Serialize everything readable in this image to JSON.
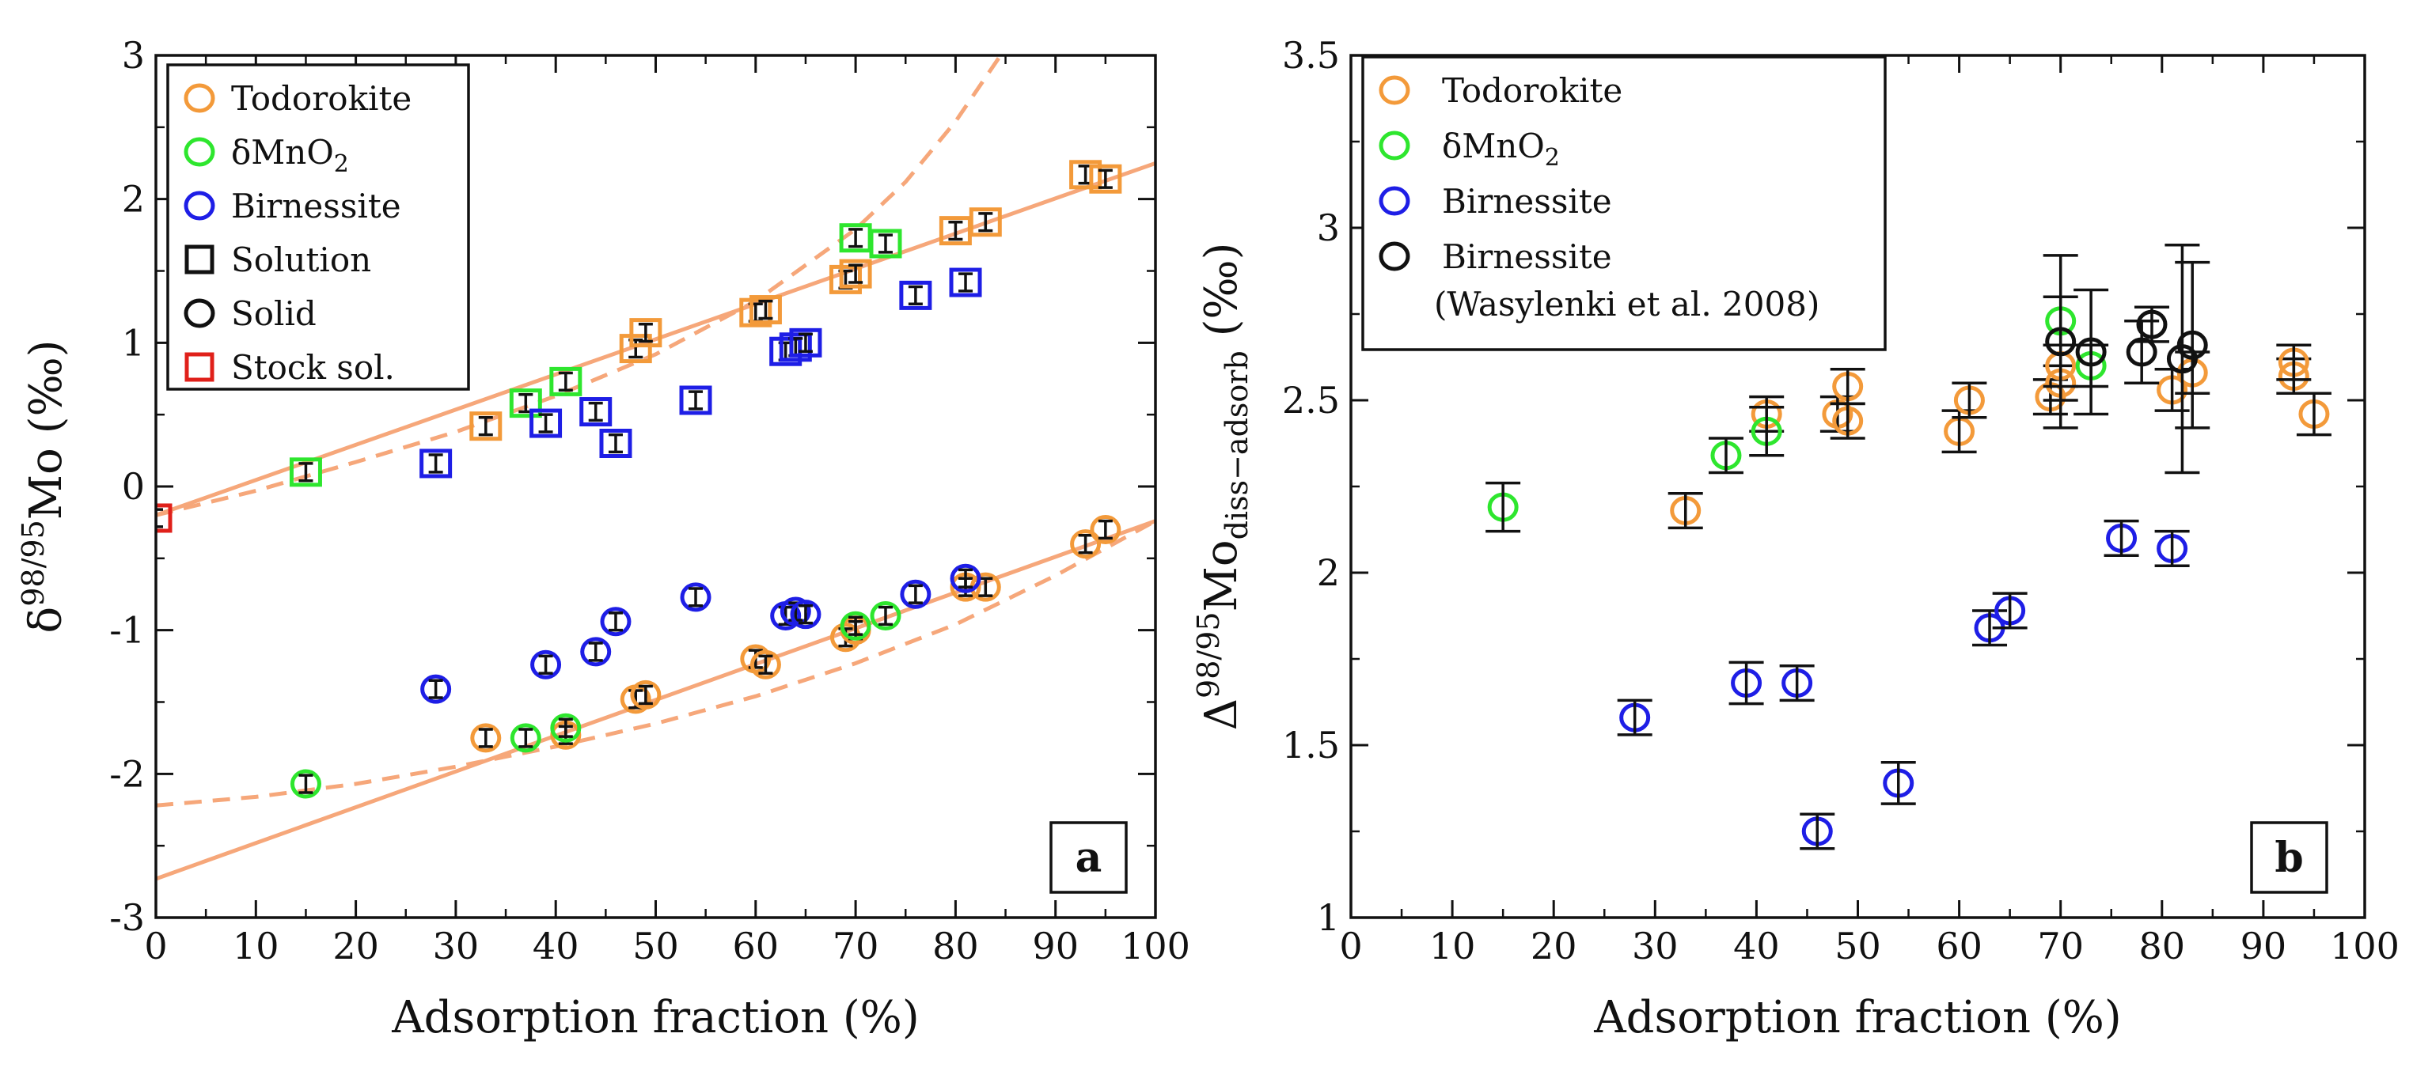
{
  "figure": {
    "panels": [
      "a",
      "b"
    ]
  },
  "chart_data": [
    {
      "type": "scatter",
      "panel": "a",
      "xlabel": "Adsorption fraction (%)",
      "ylabel": "δ98/95Mo (‰)",
      "ylabel_parts": {
        "prefix": "δ",
        "sup": "98/95",
        "main": "Mo (‰)"
      },
      "xlim": [
        0,
        100
      ],
      "ylim": [
        -3,
        3
      ],
      "xticks": [
        0,
        10,
        20,
        30,
        40,
        50,
        60,
        70,
        80,
        90,
        100
      ],
      "yticks": [
        -3,
        -2,
        -1,
        0,
        1,
        2,
        3
      ],
      "panel_label": "a",
      "legend": [
        {
          "label": "Todorokite",
          "marker": "circle",
          "color": "#F39A3A"
        },
        {
          "label": "δMnO2",
          "label_main": "δMnO",
          "label_sub": "2",
          "marker": "circle",
          "color": "#2EE62E"
        },
        {
          "label": "Birnessite",
          "marker": "circle",
          "color": "#1E1EE6"
        },
        {
          "label": "Solution",
          "marker": "square",
          "color": "#111111"
        },
        {
          "label": "Solid",
          "marker": "circle",
          "color": "#111111"
        },
        {
          "label": "Stock sol.",
          "marker": "square",
          "color": "#E0201A"
        }
      ],
      "series": [
        {
          "name": "Todorokite solution",
          "marker": "square",
          "color": "#F39A3A",
          "points": [
            [
              33,
              0.42
            ],
            [
              48,
              0.96
            ],
            [
              49,
              1.07
            ],
            [
              60,
              1.21
            ],
            [
              61,
              1.23
            ],
            [
              69,
              1.44
            ],
            [
              70,
              1.48
            ],
            [
              80,
              1.78
            ],
            [
              83,
              1.84
            ],
            [
              93,
              2.17
            ],
            [
              95,
              2.14
            ]
          ]
        },
        {
          "name": "δMnO2 solution",
          "marker": "square",
          "color": "#2EE62E",
          "points": [
            [
              15,
              0.1
            ],
            [
              37,
              0.58
            ],
            [
              41,
              0.73
            ],
            [
              70,
              1.73
            ],
            [
              73,
              1.69
            ]
          ]
        },
        {
          "name": "Birnessite solution",
          "marker": "square",
          "color": "#1E1EE6",
          "points": [
            [
              28,
              0.16
            ],
            [
              39,
              0.44
            ],
            [
              44,
              0.52
            ],
            [
              46,
              0.3
            ],
            [
              54,
              0.6
            ],
            [
              63,
              0.94
            ],
            [
              64,
              0.97
            ],
            [
              65,
              1.0
            ],
            [
              76,
              1.33
            ],
            [
              81,
              1.42
            ]
          ]
        },
        {
          "name": "Stock sol.",
          "marker": "square",
          "color": "#E0201A",
          "points": [
            [
              0,
              -0.22
            ]
          ]
        },
        {
          "name": "Todorokite solid",
          "marker": "circle",
          "color": "#F39A3A",
          "points": [
            [
              33,
              -1.75
            ],
            [
              41,
              -1.73
            ],
            [
              48,
              -1.48
            ],
            [
              49,
              -1.45
            ],
            [
              60,
              -1.2
            ],
            [
              61,
              -1.24
            ],
            [
              69,
              -1.05
            ],
            [
              70,
              -1.0
            ],
            [
              81,
              -0.7
            ],
            [
              83,
              -0.7
            ],
            [
              93,
              -0.4
            ],
            [
              95,
              -0.3
            ]
          ]
        },
        {
          "name": "δMnO2 solid",
          "marker": "circle",
          "color": "#2EE62E",
          "points": [
            [
              15,
              -2.07
            ],
            [
              37,
              -1.75
            ],
            [
              41,
              -1.68
            ],
            [
              70,
              -0.97
            ],
            [
              73,
              -0.9
            ]
          ]
        },
        {
          "name": "Birnessite solid",
          "marker": "circle",
          "color": "#1E1EE6",
          "points": [
            [
              28,
              -1.41
            ],
            [
              39,
              -1.24
            ],
            [
              44,
              -1.15
            ],
            [
              46,
              -0.94
            ],
            [
              54,
              -0.77
            ],
            [
              63,
              -0.9
            ],
            [
              64,
              -0.87
            ],
            [
              65,
              -0.89
            ],
            [
              76,
              -0.75
            ],
            [
              81,
              -0.64
            ]
          ]
        }
      ],
      "error_bar_half": 0.06,
      "lines": [
        {
          "name": "fit solution (solid)",
          "style": "solid",
          "points": [
            [
              0,
              -0.2
            ],
            [
              100,
              2.25
            ]
          ]
        },
        {
          "name": "fit solid (solid)",
          "style": "solid",
          "points": [
            [
              0,
              -2.73
            ],
            [
              100,
              -0.24
            ]
          ]
        },
        {
          "name": "Rayleigh solution (dashed)",
          "style": "dashed",
          "points": [
            [
              0,
              -0.2
            ],
            [
              10,
              -0.03
            ],
            [
              20,
              0.17
            ],
            [
              30,
              0.38
            ],
            [
              40,
              0.63
            ],
            [
              50,
              0.92
            ],
            [
              60,
              1.29
            ],
            [
              70,
              1.79
            ],
            [
              75,
              2.12
            ],
            [
              80,
              2.54
            ],
            [
              85,
              3.05
            ]
          ]
        },
        {
          "name": "Rayleigh solid (dashed)",
          "style": "dashed",
          "points": [
            [
              0,
              -2.22
            ],
            [
              10,
              -2.16
            ],
            [
              20,
              -2.07
            ],
            [
              30,
              -1.95
            ],
            [
              40,
              -1.81
            ],
            [
              50,
              -1.65
            ],
            [
              60,
              -1.46
            ],
            [
              70,
              -1.23
            ],
            [
              80,
              -0.96
            ],
            [
              90,
              -0.62
            ],
            [
              100,
              -0.24
            ]
          ]
        }
      ]
    },
    {
      "type": "scatter",
      "panel": "b",
      "xlabel": "Adsorption fraction (%)",
      "ylabel": "Δ98/95Modiss−adsorb (‰)",
      "ylabel_parts": {
        "prefix": "Δ",
        "sup": "98/95",
        "main": "Mo",
        "sub": "diss−adsorb",
        "unit": " (‰)"
      },
      "xlim": [
        0,
        100
      ],
      "ylim": [
        1,
        3.5
      ],
      "xticks": [
        0,
        10,
        20,
        30,
        40,
        50,
        60,
        70,
        80,
        90,
        100
      ],
      "yticks": [
        1,
        1.5,
        2,
        2.5,
        3,
        3.5
      ],
      "panel_label": "b",
      "legend": [
        {
          "label": "Todorokite",
          "marker": "circle",
          "color": "#F39A3A"
        },
        {
          "label": "δMnO2",
          "label_main": "δMnO",
          "label_sub": "2",
          "marker": "circle",
          "color": "#2EE62E"
        },
        {
          "label": "Birnessite",
          "marker": "circle",
          "color": "#1E1EE6"
        },
        {
          "label": "Birnessite",
          "label2": "(Wasylenki et al. 2008)",
          "marker": "circle",
          "color": "#111111"
        }
      ],
      "series": [
        {
          "name": "Todorokite",
          "marker": "circle",
          "color": "#F39A3A",
          "points": [
            [
              33,
              2.18,
              0.05
            ],
            [
              41,
              2.46,
              0.05
            ],
            [
              48,
              2.46,
              0.05
            ],
            [
              49,
              2.44,
              0.05
            ],
            [
              49,
              2.54,
              0.05
            ],
            [
              60,
              2.41,
              0.06
            ],
            [
              61,
              2.5,
              0.05
            ],
            [
              69,
              2.51,
              0.05
            ],
            [
              70,
              2.55,
              0.05
            ],
            [
              70,
              2.6,
              0.06
            ],
            [
              81,
              2.53,
              0.06
            ],
            [
              83,
              2.58,
              0.06
            ],
            [
              93,
              2.57,
              0.05
            ],
            [
              93,
              2.61,
              0.05
            ],
            [
              95,
              2.46,
              0.06
            ]
          ]
        },
        {
          "name": "δMnO2",
          "marker": "circle",
          "color": "#2EE62E",
          "points": [
            [
              15,
              2.19,
              0.07
            ],
            [
              37,
              2.34,
              0.05
            ],
            [
              41,
              2.41,
              0.07
            ],
            [
              70,
              2.73,
              0.07
            ],
            [
              73,
              2.6,
              0.06
            ]
          ]
        },
        {
          "name": "Birnessite",
          "marker": "circle",
          "color": "#1E1EE6",
          "points": [
            [
              28,
              1.58,
              0.05
            ],
            [
              39,
              1.68,
              0.06
            ],
            [
              44,
              1.68,
              0.05
            ],
            [
              46,
              1.25,
              0.05
            ],
            [
              54,
              1.39,
              0.06
            ],
            [
              63,
              1.84,
              0.05
            ],
            [
              65,
              1.89,
              0.05
            ],
            [
              76,
              2.1,
              0.05
            ],
            [
              81,
              2.07,
              0.05
            ]
          ]
        },
        {
          "name": "Birnessite (Wasylenki et al. 2008)",
          "marker": "circle",
          "color": "#111111",
          "points": [
            [
              70,
              2.67,
              0.25
            ],
            [
              73,
              2.64,
              0.18
            ],
            [
              78,
              2.64,
              0.09
            ],
            [
              79,
              2.72,
              0.05
            ],
            [
              82,
              2.62,
              0.33
            ],
            [
              83,
              2.66,
              0.24
            ]
          ]
        }
      ]
    }
  ]
}
